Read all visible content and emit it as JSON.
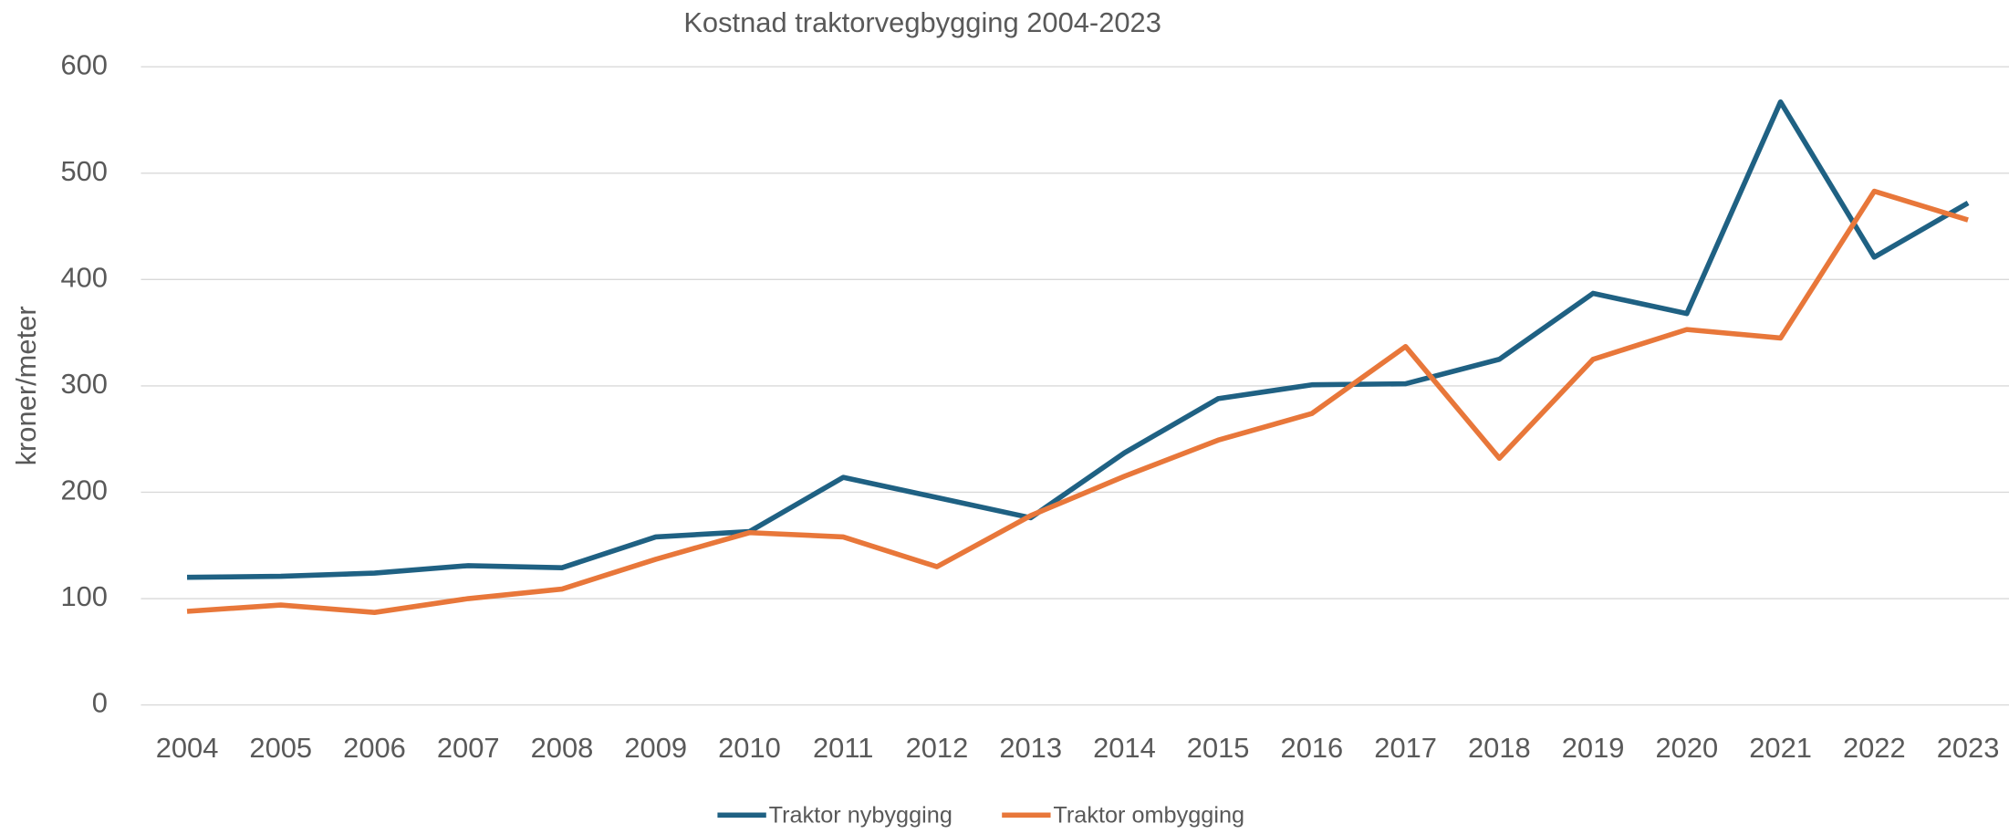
{
  "chart_data": {
    "type": "line",
    "title": "Kostnad traktorvegbygging 2004-2023",
    "y_label": "kroner/meter",
    "categories": [
      "2004",
      "2005",
      "2006",
      "2007",
      "2008",
      "2009",
      "2010",
      "2011",
      "2012",
      "2013",
      "2014",
      "2015",
      "2016",
      "2017",
      "2018",
      "2019",
      "2020",
      "2021",
      "2022",
      "2023"
    ],
    "series": [
      {
        "name": "Traktor nybygging",
        "color": "#1f6183",
        "values": [
          120,
          121,
          124,
          131,
          129,
          158,
          163,
          214,
          195,
          176,
          237,
          288,
          301,
          302,
          325,
          387,
          368,
          567,
          421,
          472
        ]
      },
      {
        "name": "Traktor ombygging",
        "color": "#e8773a",
        "values": [
          88,
          94,
          87,
          100,
          109,
          137,
          162,
          158,
          130,
          178,
          215,
          249,
          274,
          337,
          232,
          325,
          353,
          345,
          483,
          456
        ]
      }
    ],
    "ylim": [
      0,
      600
    ],
    "yticks": [
      0,
      100,
      200,
      300,
      400,
      500,
      600
    ],
    "grid": true,
    "legend": "bottom"
  }
}
